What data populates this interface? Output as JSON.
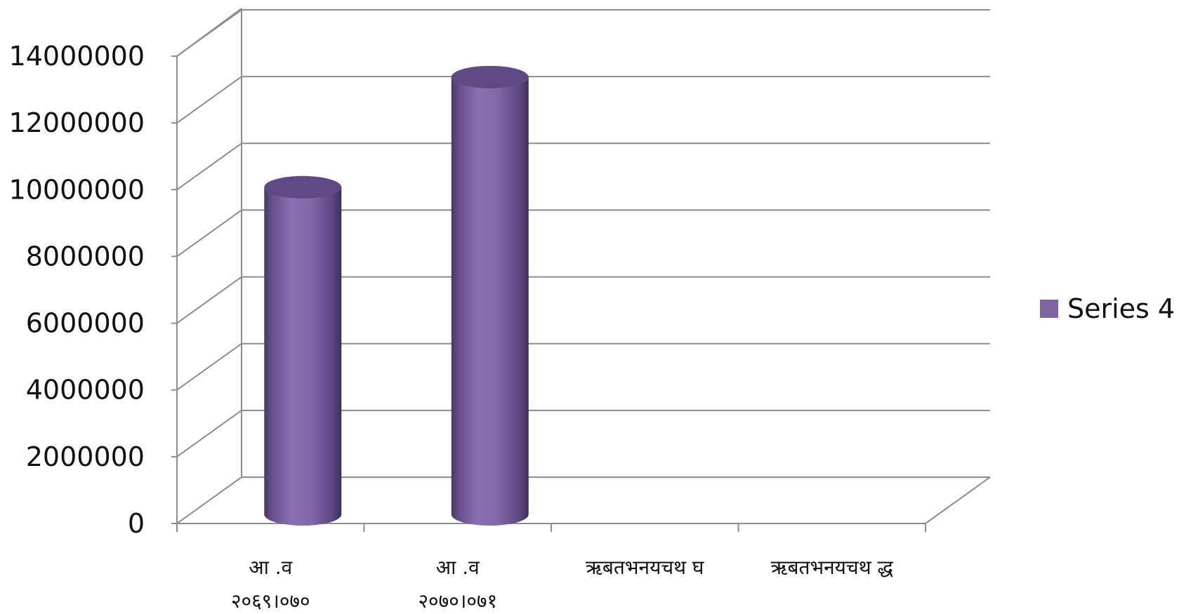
{
  "chart_data": {
    "type": "bar",
    "style": "3d-cylinder",
    "categories": [
      [
        "आ .व",
        "२०६९।०७०"
      ],
      [
        "आ .व",
        "२०७०।०७१"
      ],
      [
        "ऋबतभनयचथ घ"
      ],
      [
        "ऋबतभनयचथ द्ध"
      ]
    ],
    "series": [
      {
        "name": "Series 4",
        "color": "#8064a2",
        "values": [
          9800000,
          13100000,
          null,
          null
        ]
      }
    ],
    "yticks": [
      "0",
      "2000000",
      "4000000",
      "6000000",
      "8000000",
      "10000000",
      "12000000",
      "14000000"
    ],
    "ylim": [
      0,
      14000000
    ],
    "grid": true,
    "legend_position": "right"
  }
}
